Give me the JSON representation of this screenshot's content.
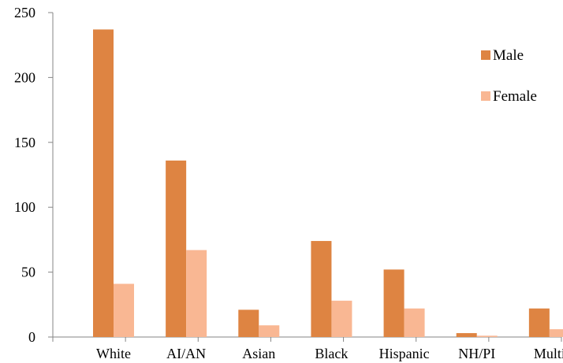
{
  "chart_data": {
    "type": "bar",
    "categories": [
      "White",
      "AI/AN",
      "Asian",
      "Black",
      "Hispanic",
      "NH/PI",
      "Multi"
    ],
    "series": [
      {
        "name": "Male",
        "color": "#DE8442",
        "values": [
          237,
          136,
          21,
          74,
          52,
          3,
          22
        ]
      },
      {
        "name": "Female",
        "color": "#F9B793",
        "values": [
          41,
          67,
          9,
          28,
          22,
          1,
          6
        ]
      }
    ],
    "yticks": [
      0,
      50,
      100,
      150,
      200,
      250
    ],
    "ylim": [
      0,
      250
    ],
    "grid": false,
    "legend_position": "top-right"
  }
}
